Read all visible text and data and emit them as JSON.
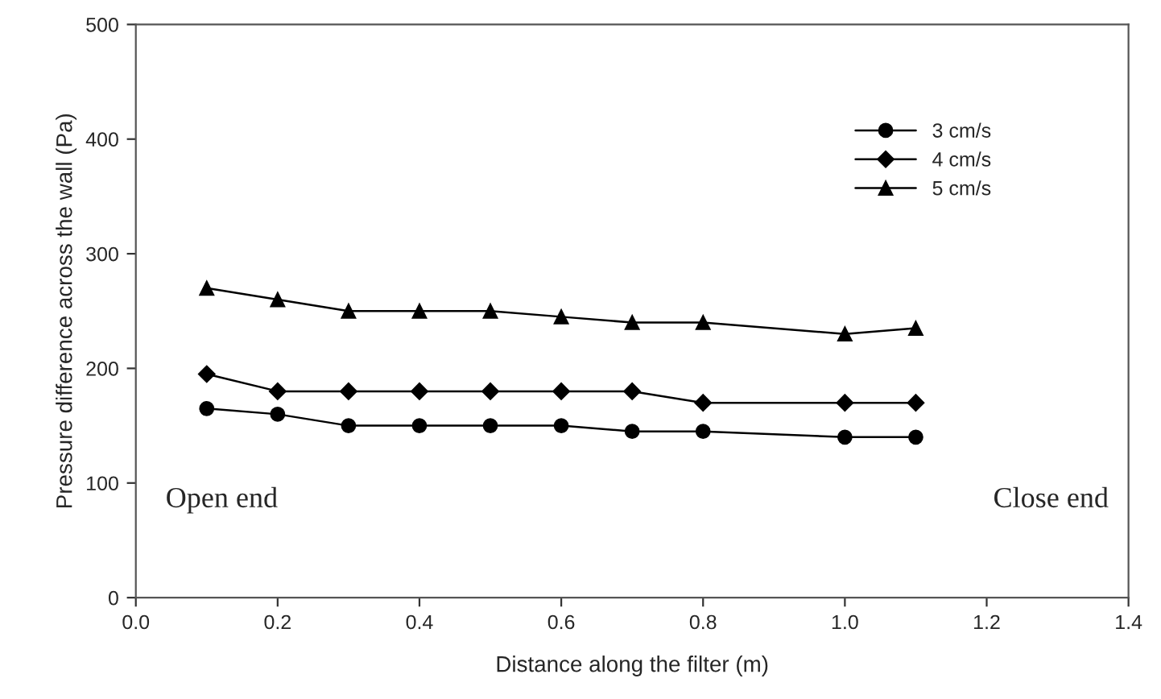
{
  "chart_data": {
    "type": "line",
    "xlabel": "Distance along the filter (m)",
    "ylabel": "Pressure difference across the wall (Pa)",
    "x": [
      0.1,
      0.2,
      0.3,
      0.4,
      0.5,
      0.6,
      0.7,
      0.8,
      1.0,
      1.1
    ],
    "series": [
      {
        "name": "3 cm/s",
        "color": "#000000",
        "marker": "circle",
        "values": [
          165,
          160,
          150,
          150,
          150,
          150,
          145,
          145,
          140,
          140
        ]
      },
      {
        "name": "4 cm/s",
        "color": "#000000",
        "marker": "diamond",
        "values": [
          195,
          180,
          180,
          180,
          180,
          180,
          180,
          170,
          170,
          170
        ]
      },
      {
        "name": "5 cm/s",
        "color": "#000000",
        "marker": "triangle",
        "values": [
          270,
          260,
          250,
          250,
          250,
          245,
          240,
          240,
          230,
          235
        ]
      }
    ],
    "xlim": [
      0.0,
      1.4
    ],
    "xticks": [
      {
        "value": 0.0,
        "label": "0.0"
      },
      {
        "value": 0.2,
        "label": "0.2"
      },
      {
        "value": 0.4,
        "label": "0.4"
      },
      {
        "value": 0.6,
        "label": "0.6"
      },
      {
        "value": 0.8,
        "label": "0.8"
      },
      {
        "value": 1.0,
        "label": "1.0"
      },
      {
        "value": 1.2,
        "label": "1.2"
      },
      {
        "value": 1.4,
        "label": "1.4"
      }
    ],
    "ylim": [
      0,
      500
    ],
    "yticks": [
      0,
      100,
      200,
      300,
      400,
      500
    ],
    "annotations": [
      "Open end",
      "Close end"
    ],
    "legend": "top right",
    "grid": false,
    "line_style": "solid"
  }
}
